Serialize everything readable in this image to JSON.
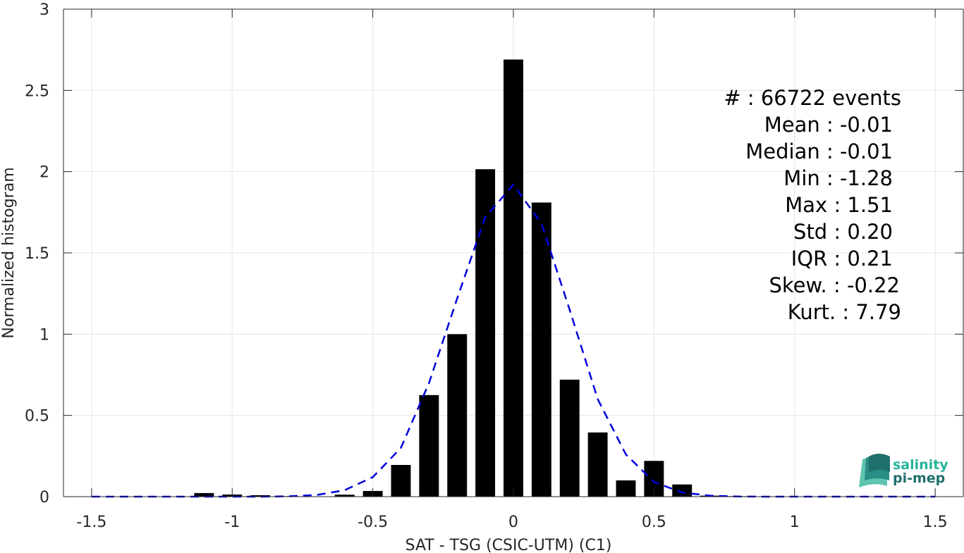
{
  "chart_data": {
    "type": "bar",
    "xlabel": "SAT - TSG (CSIC-UTM) (C1)",
    "ylabel": "Normalized histogram",
    "xlim": [
      -1.6,
      1.6
    ],
    "ylim": [
      0,
      3
    ],
    "xticks": [
      "-1.5",
      "-1",
      "-0.5",
      "0",
      "0.5",
      "1",
      "1.5"
    ],
    "xtick_values": [
      -1.5,
      -1,
      -0.5,
      0,
      0.5,
      1,
      1.5
    ],
    "yticks": [
      "0",
      "0.5",
      "1",
      "1.5",
      "2",
      "2.5",
      "3"
    ],
    "ytick_values": [
      0,
      0.5,
      1,
      1.5,
      2,
      2.5,
      3
    ],
    "grid": true,
    "bar_width": 0.07,
    "bars": {
      "x": [
        -1.5,
        -1.4,
        -1.3,
        -1.2,
        -1.1,
        -1.0,
        -0.9,
        -0.8,
        -0.7,
        -0.6,
        -0.5,
        -0.4,
        -0.3,
        -0.2,
        -0.1,
        0.0,
        0.1,
        0.2,
        0.3,
        0.4,
        0.5,
        0.6,
        0.7,
        0.8,
        0.9,
        1.0,
        1.1,
        1.2,
        1.3,
        1.4,
        1.5
      ],
      "values": [
        0,
        0,
        0,
        0,
        0.022,
        0.013,
        0.009,
        0.003,
        0.002,
        0.012,
        0.035,
        0.195,
        0.625,
        1.0,
        2.015,
        2.69,
        1.81,
        0.72,
        0.395,
        0.1,
        0.22,
        0.075,
        0.006,
        0.003,
        0.002,
        0.002,
        0.001,
        0.001,
        0.001,
        0.001,
        0.001
      ]
    },
    "normal_fit": {
      "style": "dashed",
      "color": "#0000dd",
      "x": [
        -1.5,
        -1.4,
        -1.3,
        -1.2,
        -1.1,
        -1.0,
        -0.9,
        -0.8,
        -0.7,
        -0.6,
        -0.5,
        -0.4,
        -0.3,
        -0.2,
        -0.1,
        0.0,
        0.1,
        0.2,
        0.3,
        0.4,
        0.5,
        0.6,
        0.7,
        0.8,
        0.9,
        1.0,
        1.1,
        1.2,
        1.3,
        1.4,
        1.5
      ],
      "values": [
        0,
        0,
        0,
        0,
        0,
        0,
        0,
        0.002,
        0.01,
        0.04,
        0.12,
        0.3,
        0.7,
        1.22,
        1.72,
        1.92,
        1.68,
        1.15,
        0.6,
        0.26,
        0.09,
        0.025,
        0.006,
        0.001,
        0,
        0,
        0,
        0,
        0,
        0,
        0
      ]
    },
    "stats": [
      "#  : 66722 events",
      "Mean : -0.01",
      "Median : -0.01",
      "Min : -1.28",
      "Max : 1.51",
      "Std : 0.20",
      "IQR : 0.21",
      "Skew. : -0.22",
      "Kurt. : 7.79"
    ],
    "colors": {
      "bars": "#000000",
      "fit": "#0000dd",
      "grid": "#e6e6e6",
      "axes": "#262626"
    }
  },
  "logo": {
    "line1": "salinity",
    "line2": "pi-mep",
    "color1": "#25b39a",
    "color2": "#1f6f6c"
  }
}
